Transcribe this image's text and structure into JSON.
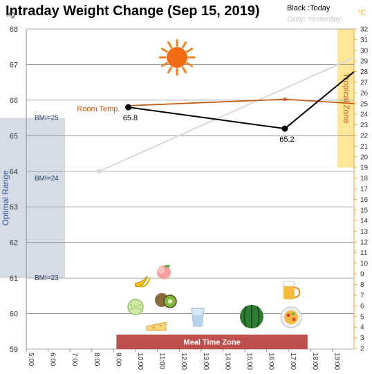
{
  "chart_data": {
    "type": "line",
    "title": "Intraday Weight Change (Sep 15, 2019)",
    "y_unit": "kg",
    "y2_unit": "℃",
    "ylim": [
      59,
      68
    ],
    "y2lim": [
      2,
      32
    ],
    "x_ticks": [
      "5:00",
      "6:00",
      "7:00",
      "8:00",
      "9:00",
      "10:00",
      "11:00",
      "12:00",
      "13:00",
      "14:00",
      "15:00",
      "16:00",
      "17:00",
      "18:00",
      "19:00"
    ],
    "xlim_hours": [
      5,
      20
    ],
    "grid": true,
    "legend": {
      "today": "Black :Today",
      "yesterday": "Gray: Yesterday",
      "position": "top-right"
    },
    "colors": {
      "today": "#000000",
      "yesterday": "#d9d9d9",
      "room": "#c55a11",
      "axis2": "#f5a623",
      "optimal": "#d6dce5",
      "tropical": "#ffe699",
      "meal": "#c0504d",
      "sun": "#f5821f"
    },
    "series": [
      {
        "name": "Today",
        "points": [
          {
            "x": "9:40",
            "y": 65.8,
            "label": "65.8"
          },
          {
            "x": "16:50",
            "y": 65.2,
            "label": "65.2"
          },
          {
            "x": "20:00",
            "y": 66.8
          }
        ]
      },
      {
        "name": "Yesterday",
        "points": [
          {
            "x": "8:20",
            "y": 64.0
          },
          {
            "x": "20:00",
            "y": 67.2
          }
        ]
      },
      {
        "name": "Room Temp.",
        "axis": "y2",
        "points": [
          {
            "x": "9:40",
            "y": 24.8
          },
          {
            "x": "16:50",
            "y": 25.4
          },
          {
            "x": "20:00",
            "y": 25.0
          }
        ]
      }
    ],
    "annotations": {
      "optimal_range": {
        "label": "Optimal Range",
        "from": 61,
        "to": 65.5
      },
      "bmi_lines": [
        {
          "label": "BMI=25",
          "y": 65.5
        },
        {
          "label": "BMI=24",
          "y": 63.8
        },
        {
          "label": "BMI=23",
          "y": 61.0
        }
      ],
      "tropical_zone": {
        "label": "Tropical Zone",
        "from": 19,
        "to": 32
      },
      "room_temp_label": "Room Temp.",
      "meal_zone": {
        "label": "Meal Time Zone",
        "from": "9:00",
        "to": "18:00"
      }
    },
    "icons": [
      "sun-icon",
      "banana-icon",
      "peach-icon",
      "melon-icon",
      "kiwi-icon",
      "cheese-icon",
      "water-glass-icon",
      "watermelon-icon",
      "beer-icon",
      "pizza-plate-icon"
    ]
  }
}
